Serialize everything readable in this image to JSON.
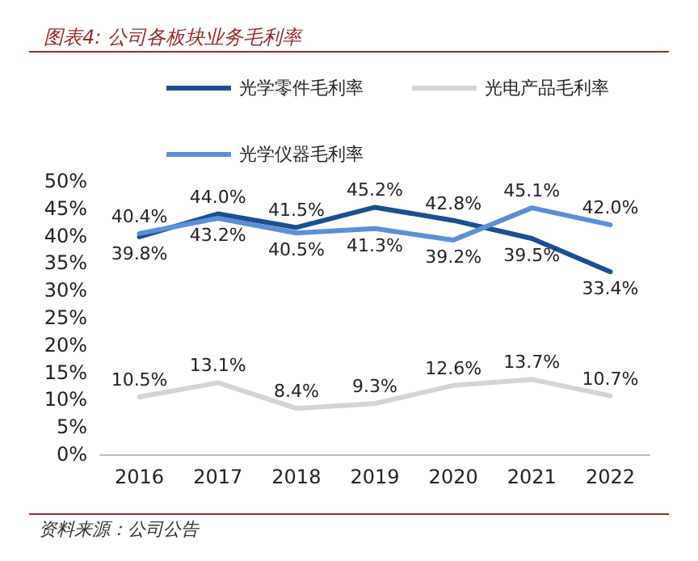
{
  "chart_data": {
    "type": "line",
    "title": "图表4: 公司各板块业务毛利率",
    "categories": [
      "2016",
      "2017",
      "2018",
      "2019",
      "2020",
      "2021",
      "2022"
    ],
    "series": [
      {
        "name": "光学零件毛利率",
        "color": "#1b4f91",
        "values": [
          39.8,
          44.0,
          41.5,
          45.2,
          42.8,
          39.5,
          33.4
        ],
        "value_labels": [
          "39.8%",
          "44.0%",
          "41.5%",
          "45.2%",
          "42.8%",
          "39.5%",
          "33.4%"
        ]
      },
      {
        "name": "光电产品毛利率",
        "color": "#d4d4d4",
        "values": [
          10.5,
          13.1,
          8.4,
          9.3,
          12.6,
          13.7,
          10.7
        ],
        "value_labels": [
          "10.5%",
          "13.1%",
          "8.4%",
          "9.3%",
          "12.6%",
          "13.7%",
          "10.7%"
        ]
      },
      {
        "name": "光学仪器毛利率",
        "color": "#5b8fd6",
        "values": [
          40.4,
          43.2,
          40.5,
          41.3,
          39.2,
          45.1,
          42.0
        ],
        "value_labels": [
          "40.4%",
          "43.2%",
          "40.5%",
          "41.3%",
          "39.2%",
          "45.1%",
          "42.0%"
        ]
      }
    ],
    "ylim": [
      0,
      50
    ],
    "yticks": [
      {
        "value": 0,
        "label": "0%"
      },
      {
        "value": 5,
        "label": "5%"
      },
      {
        "value": 10,
        "label": "10%"
      },
      {
        "value": 15,
        "label": "15%"
      },
      {
        "value": 20,
        "label": "20%"
      },
      {
        "value": 25,
        "label": "25%"
      },
      {
        "value": 30,
        "label": "30%"
      },
      {
        "value": 35,
        "label": "35%"
      },
      {
        "value": 40,
        "label": "40%"
      },
      {
        "value": 45,
        "label": "45%"
      },
      {
        "value": 50,
        "label": "50%"
      }
    ],
    "grid": false,
    "legend": "top",
    "marker": "none",
    "line_style": "solid",
    "annotations": [
      "资料来源：公司公告"
    ]
  }
}
